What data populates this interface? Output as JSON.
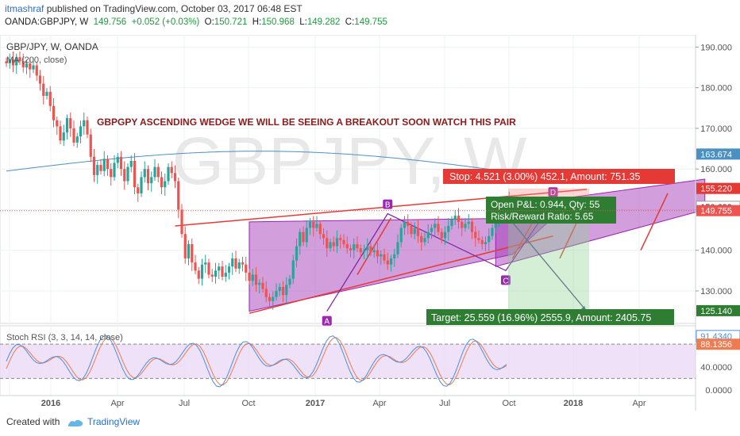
{
  "header": {
    "author": "itmashraf",
    "published": "published on TradingView.com, October 03, 2017 06:48 EST",
    "symbol": "OANDA:GBPJPY, W",
    "price": "149.756",
    "change": "+0.052 (+0.03%)",
    "o_label": "O:",
    "o_value": "150.721",
    "h_label": "H:",
    "h_value": "150.968",
    "l_label": "L:",
    "l_value": "149.282",
    "c_label": "C:",
    "c_value": "149.755"
  },
  "footer": {
    "created": "Created with",
    "brand": "TradingView"
  },
  "colors": {
    "up": "#26a69a",
    "down": "#ef5350",
    "wedge_fill": "#9c27b0",
    "ma": "#4a90c2",
    "stoch_k": "#4a90e2",
    "stoch_d": "#f07b50",
    "stop": "#e53935",
    "target": "#2e7d32",
    "label_purple": "#9c27b0"
  },
  "chart_data": [
    {
      "type": "candlestick",
      "title": "GBP/JPY, W, OANDA",
      "indicator_label": "MA (200, close)",
      "watermark": "GBPJPY, W",
      "annotation": "GBPGPY ASCENDING WEDGE WE WILL BE SEEING A BREAKOUT SOON WATCH THIS PAIR",
      "x_ticks": [
        "2016",
        "Apr",
        "Jul",
        "Oct",
        "2017",
        "Apr",
        "Jul",
        "Oct",
        "2018",
        "Apr"
      ],
      "y_ticks": [
        "190.000",
        "180.000",
        "170.000",
        "160.000",
        "150.000",
        "140.000",
        "130.000"
      ],
      "ylim": [
        122,
        193
      ],
      "price_labels": [
        {
          "text": "163.674",
          "value": 163.674,
          "color": "#4a90c2"
        },
        {
          "text": "155.220",
          "value": 155.22,
          "color": "#e53935"
        },
        {
          "text": "150.699",
          "value": 150.699,
          "color": "#ffffff"
        },
        {
          "text": "149.755",
          "value": 149.755,
          "color": "#ef5350"
        },
        {
          "text": "125.140",
          "value": 125.14,
          "color": "#2e7d32"
        }
      ],
      "pattern_points": [
        {
          "label": "A",
          "week": 95,
          "price": 125.0
        },
        {
          "label": "B",
          "week": 113,
          "price": 149.0
        },
        {
          "label": "C",
          "week": 148,
          "price": 135.0
        },
        {
          "label": "D",
          "week": 162,
          "price": 152.0
        }
      ],
      "position": {
        "stop": "Stop: 4.521 (3.00%) 452.1, Amount: 751.35",
        "pnl": "Open P&L: 0.944, Qty: 55",
        "rr": "Risk/Reward Ratio: 5.65",
        "target": "Target: 25.559 (16.96%) 2555.9, Amount: 2405.75",
        "entry": 150.699,
        "stop_price": 155.22,
        "target_price": 125.14
      },
      "candles_close": [
        186.0,
        187.0,
        185.5,
        187.5,
        186.5,
        185.0,
        186.0,
        184.5,
        185.5,
        183.0,
        181.0,
        178.0,
        179.0,
        175.5,
        172.0,
        170.5,
        167.0,
        169.0,
        172.5,
        170.0,
        166.5,
        168.0,
        170.5,
        172.0,
        168.5,
        163.0,
        158.5,
        161.0,
        159.5,
        162.5,
        160.0,
        158.0,
        161.5,
        163.0,
        160.0,
        157.0,
        160.5,
        162.0,
        155.5,
        154.0,
        158.0,
        160.0,
        156.5,
        158.0,
        160.5,
        158.0,
        155.5,
        157.0,
        160.5,
        159.0,
        157.0,
        150.0,
        144.0,
        138.0,
        141.5,
        137.0,
        135.0,
        133.0,
        136.5,
        137.0,
        134.0,
        133.5,
        135.0,
        136.0,
        133.5,
        134.5,
        136.0,
        138.0,
        135.5,
        137.0,
        136.5,
        134.5,
        132.5,
        134.0,
        131.5,
        132.0,
        130.5,
        128.5,
        127.5,
        128.5,
        130.0,
        131.0,
        129.0,
        131.5,
        133.0,
        137.5,
        141.0,
        144.5,
        142.0,
        145.5,
        147.0,
        145.5,
        146.5,
        144.0,
        143.0,
        140.5,
        142.0,
        141.0,
        143.0,
        142.5,
        141.5,
        140.5,
        140.0,
        141.5,
        140.5,
        139.5,
        140.0,
        141.0,
        139.5,
        140.0,
        138.5,
        139.0,
        137.5,
        136.5,
        138.0,
        139.0,
        142.0,
        145.5,
        147.0,
        146.0,
        144.0,
        145.5,
        143.5,
        142.0,
        143.0,
        144.5,
        145.5,
        146.5,
        144.5,
        143.0,
        144.5,
        146.0,
        147.5,
        148.5,
        147.0,
        145.5,
        146.5,
        147.0,
        144.5,
        143.0,
        142.5,
        141.5,
        142.0,
        143.5,
        145.5,
        147.5,
        149.5,
        149.0,
        151.5,
        152.5
      ]
    },
    {
      "type": "line",
      "title": "Stoch RSI (3, 3, 14, 14, close)",
      "y_ticks": [
        "40.0000",
        "0.0000"
      ],
      "ylim": [
        -10,
        112
      ],
      "current_labels": [
        {
          "text": "91.4340",
          "value": 91.434,
          "color": "#4a90e2"
        },
        {
          "text": "88.1356",
          "value": 88.1356,
          "color": "#f07b50"
        }
      ],
      "levels": [
        80,
        20
      ]
    }
  ]
}
